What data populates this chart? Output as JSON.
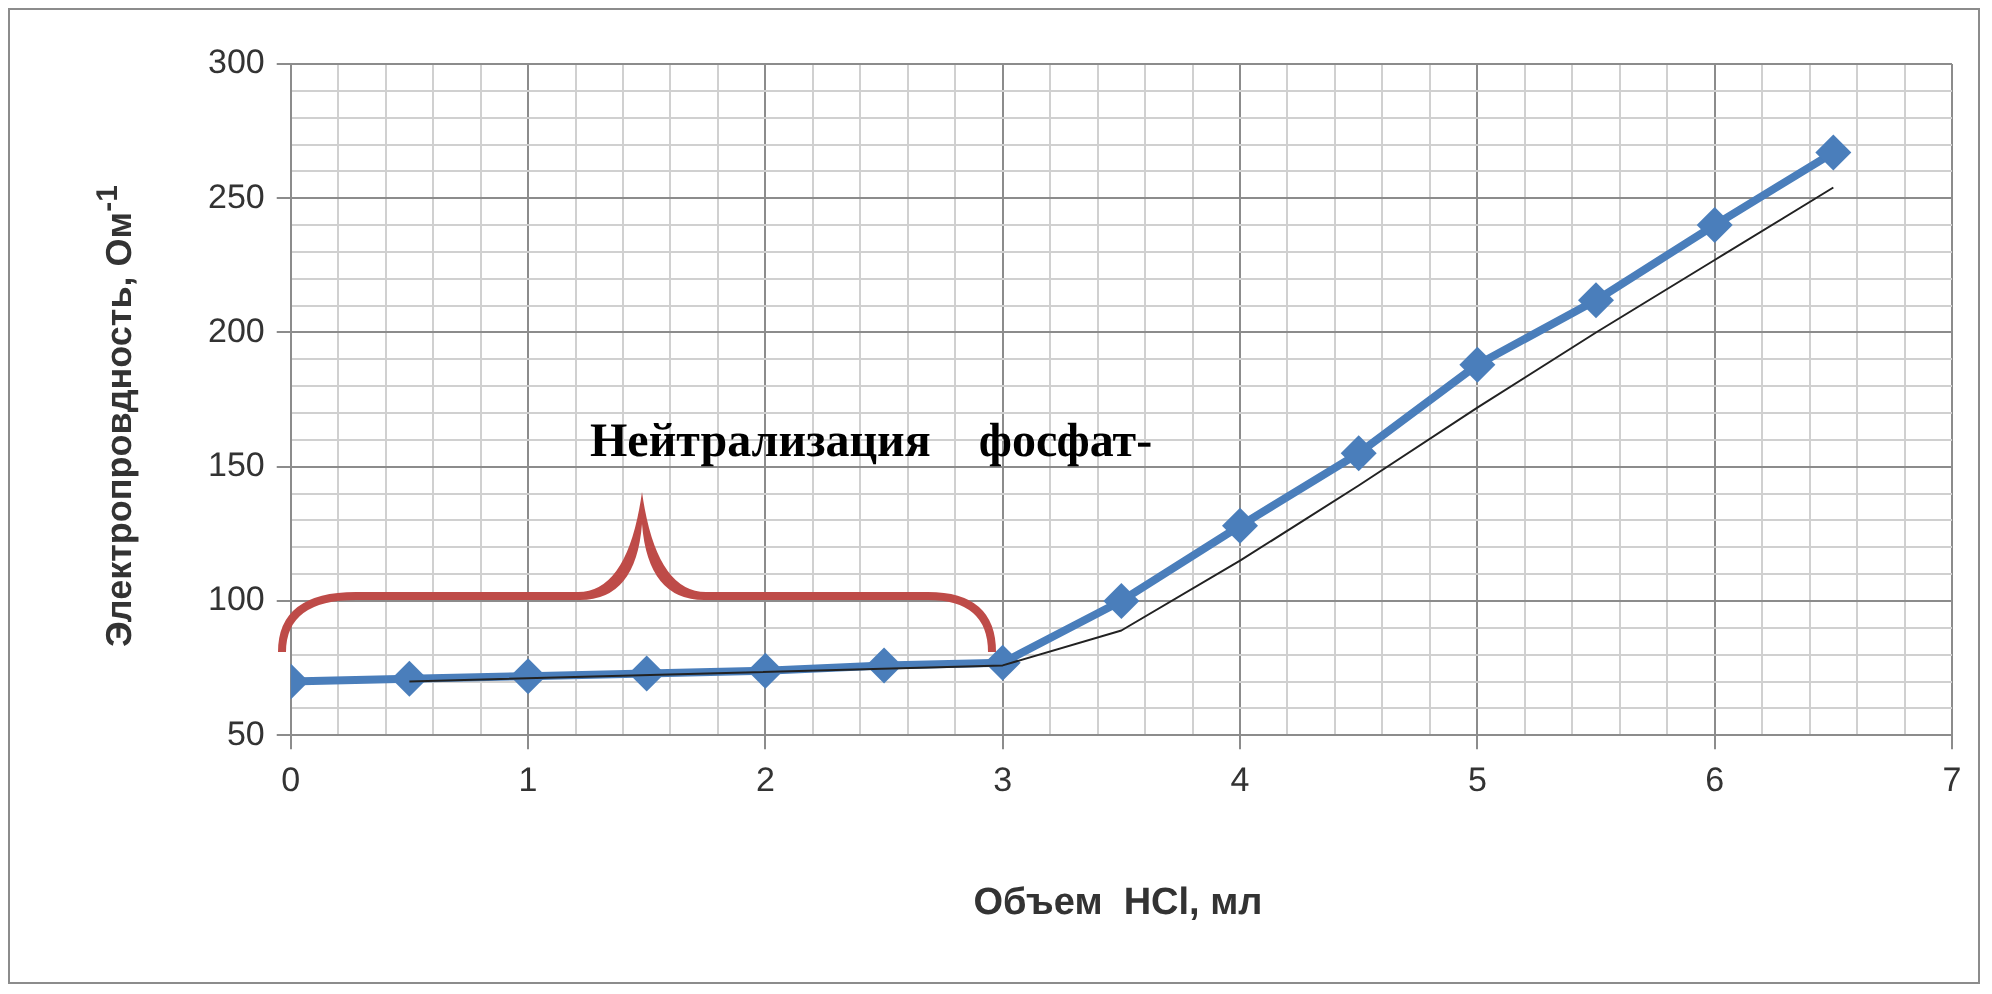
{
  "chart_data": {
    "type": "line",
    "xlabel": "Объем  HCl, мл",
    "ylabel": "Электропровдность, Ом$^{-1}$",
    "x": [
      0,
      0.5,
      1,
      1.5,
      2,
      2.5,
      3,
      3.5,
      4,
      4.5,
      5,
      5.5,
      6,
      6.5
    ],
    "series": [
      {
        "color": "#4a7ebb",
        "marker": "diamond",
        "values": [
          70,
          71,
          72,
          73,
          74,
          76,
          77,
          100,
          128,
          155,
          188,
          212,
          240,
          267
        ]
      },
      {
        "color": "#222222",
        "marker": "none",
        "x": [
          0.5,
          3,
          3.5,
          4,
          4.5,
          5,
          5.5,
          6,
          6.5
        ],
        "values": [
          70,
          76,
          89,
          115,
          143,
          172,
          200,
          227,
          254
        ]
      }
    ],
    "xlim": [
      0,
      7
    ],
    "xticks": [
      0,
      {
        "value": 0.2,
        "label": null
      },
      {
        "value": 0.4,
        "label": null
      },
      {
        "value": 0.6,
        "label": null
      },
      {
        "value": 0.8,
        "label": null
      },
      1,
      {
        "value": 1.2,
        "label": null
      },
      {
        "value": 1.4,
        "label": null
      },
      {
        "value": 1.6,
        "label": null
      },
      {
        "value": 1.8,
        "label": null
      },
      2,
      {
        "value": 2.2,
        "label": null
      },
      {
        "value": 2.4,
        "label": null
      },
      {
        "value": 2.6,
        "label": null
      },
      {
        "value": 2.8,
        "label": null
      },
      3,
      {
        "value": 3.2,
        "label": null
      },
      {
        "value": 3.4,
        "label": null
      },
      {
        "value": 3.6,
        "label": null
      },
      {
        "value": 3.8,
        "label": null
      },
      4,
      {
        "value": 4.2,
        "label": null
      },
      {
        "value": 4.4,
        "label": null
      },
      {
        "value": 4.6,
        "label": null
      },
      {
        "value": 4.8,
        "label": null
      },
      5,
      {
        "value": 5.2,
        "label": null
      },
      {
        "value": 5.4,
        "label": null
      },
      {
        "value": 5.6,
        "label": null
      },
      {
        "value": 5.8,
        "label": null
      },
      6,
      {
        "value": 6.2,
        "label": null
      },
      {
        "value": 6.4,
        "label": null
      },
      {
        "value": 6.6,
        "label": null
      },
      {
        "value": 6.8,
        "label": null
      },
      7
    ],
    "ylim": [
      50,
      300
    ],
    "yticks": [
      50,
      {
        "value": 60,
        "label": null
      },
      {
        "value": 70,
        "label": null
      },
      {
        "value": 80,
        "label": null
      },
      {
        "value": 90,
        "label": null
      },
      100,
      {
        "value": 110,
        "label": null
      },
      {
        "value": 120,
        "label": null
      },
      {
        "value": 130,
        "label": null
      },
      {
        "value": 140,
        "label": null
      },
      150,
      {
        "value": 160,
        "label": null
      },
      {
        "value": 170,
        "label": null
      },
      {
        "value": 180,
        "label": null
      },
      {
        "value": 190,
        "label": null
      },
      200,
      {
        "value": 210,
        "label": null
      },
      {
        "value": 220,
        "label": null
      },
      {
        "value": 230,
        "label": null
      },
      {
        "value": 240,
        "label": null
      },
      250,
      {
        "value": 260,
        "label": null
      },
      {
        "value": 270,
        "label": null
      },
      {
        "value": 280,
        "label": null
      },
      {
        "value": 290,
        "label": null
      },
      300
    ],
    "grid": true,
    "legend": false,
    "line_style": "solid",
    "annotations": [
      "Нейтрализация    фосфат-"
    ]
  }
}
